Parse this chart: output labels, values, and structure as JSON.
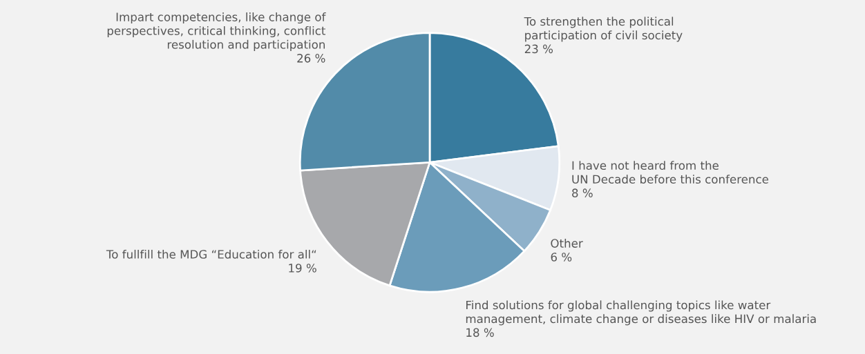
{
  "chart_data": {
    "type": "pie",
    "categories": [
      "To strengthen the political\nparticipation of civil society",
      "I have not heard from the\nUN Decade before this conference",
      "Other",
      "Find solutions for global challenging topics like water\nmanagement, climate change or diseases like HIV or malaria",
      "To fullfill the MDG “Education for all“",
      "Impart competencies, like change of\nperspectives, critical thinking, conflict\nresolution and participation"
    ],
    "values": [
      23,
      8,
      6,
      18,
      19,
      26
    ],
    "value_labels": [
      "23 %",
      "8 %",
      "6 %",
      "18 %",
      "19 %",
      "26 %"
    ],
    "colors": [
      "#377b9e",
      "#e1e8f0",
      "#8fb1ca",
      "#6b9cba",
      "#a7a8ab",
      "#528ba9"
    ]
  }
}
